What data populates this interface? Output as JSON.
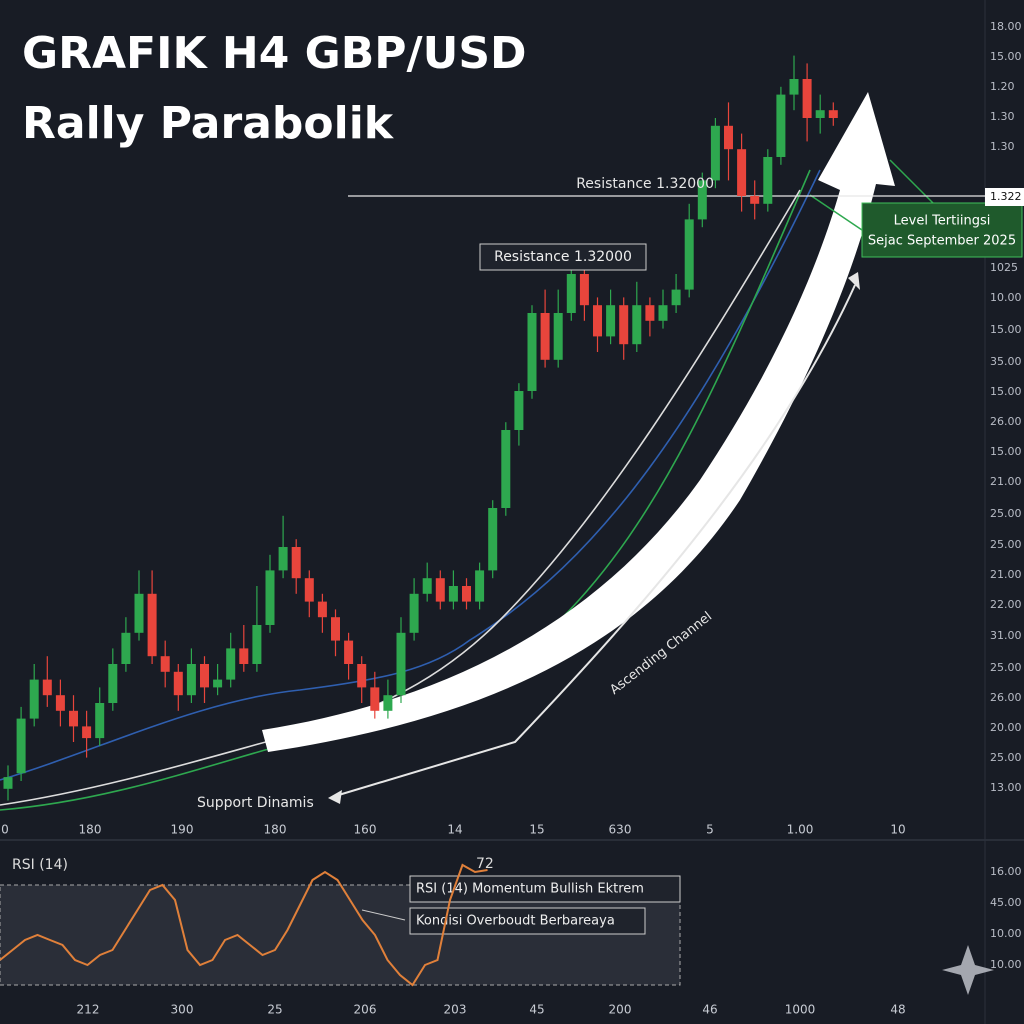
{
  "chart_data": {
    "type": "candlestick",
    "title_line1": "GRAFIK H4 GBP/USD",
    "title_line2": "Rally Parabolik",
    "ylim": [
      1.24,
      1.34
    ],
    "resistance": 1.32,
    "resistance_label": "Resistance 1.32000",
    "resistance_box_label": "Resistance 1.32000",
    "high_box_line1": "Level Tertiingsi",
    "high_box_line2": "Sejac September 2025",
    "channel_label": "Ascending Channel",
    "support_label": "Support Dinamis",
    "up_color": "#2ea84f",
    "down_color": "#e8453c",
    "open": [
      1.244,
      1.246,
      1.253,
      1.258,
      1.256,
      1.254,
      1.252,
      1.2505,
      1.255,
      1.26,
      1.264,
      1.269,
      1.261,
      1.259,
      1.256,
      1.26,
      1.257,
      1.258,
      1.262,
      1.26,
      1.265,
      1.272,
      1.275,
      1.271,
      1.268,
      1.266,
      1.263,
      1.26,
      1.257,
      1.254,
      1.256,
      1.264,
      1.269,
      1.271,
      1.268,
      1.27,
      1.268,
      1.272,
      1.28,
      1.29,
      1.295,
      1.305,
      1.299,
      1.305,
      1.31,
      1.306,
      1.302,
      1.306,
      1.301,
      1.306,
      1.304,
      1.306,
      1.308,
      1.317,
      1.322,
      1.329,
      1.326,
      1.32,
      1.319,
      1.325,
      1.333,
      1.335,
      1.33,
      1.331
    ],
    "close": [
      1.2455,
      1.253,
      1.258,
      1.256,
      1.254,
      1.252,
      1.2505,
      1.255,
      1.26,
      1.264,
      1.269,
      1.261,
      1.259,
      1.256,
      1.26,
      1.257,
      1.258,
      1.262,
      1.26,
      1.265,
      1.272,
      1.275,
      1.271,
      1.268,
      1.266,
      1.263,
      1.26,
      1.257,
      1.254,
      1.256,
      1.264,
      1.269,
      1.271,
      1.268,
      1.27,
      1.268,
      1.272,
      1.28,
      1.29,
      1.295,
      1.305,
      1.299,
      1.305,
      1.31,
      1.306,
      1.302,
      1.306,
      1.301,
      1.306,
      1.304,
      1.306,
      1.308,
      1.317,
      1.322,
      1.329,
      1.326,
      1.32,
      1.319,
      1.325,
      1.333,
      1.335,
      1.33,
      1.331,
      1.33
    ],
    "high": [
      1.247,
      1.2545,
      1.26,
      1.261,
      1.258,
      1.256,
      1.254,
      1.257,
      1.262,
      1.266,
      1.272,
      1.272,
      1.263,
      1.26,
      1.262,
      1.261,
      1.26,
      1.264,
      1.265,
      1.27,
      1.274,
      1.279,
      1.276,
      1.272,
      1.269,
      1.267,
      1.264,
      1.261,
      1.259,
      1.258,
      1.266,
      1.271,
      1.273,
      1.272,
      1.272,
      1.271,
      1.273,
      1.281,
      1.291,
      1.296,
      1.306,
      1.308,
      1.308,
      1.313,
      1.311,
      1.307,
      1.308,
      1.307,
      1.309,
      1.307,
      1.308,
      1.31,
      1.319,
      1.323,
      1.33,
      1.332,
      1.328,
      1.322,
      1.326,
      1.334,
      1.338,
      1.337,
      1.333,
      1.332
    ],
    "low": [
      1.2425,
      1.245,
      1.252,
      1.2545,
      1.252,
      1.25,
      1.248,
      1.2495,
      1.254,
      1.259,
      1.263,
      1.26,
      1.257,
      1.254,
      1.255,
      1.255,
      1.256,
      1.257,
      1.259,
      1.259,
      1.264,
      1.271,
      1.269,
      1.266,
      1.264,
      1.261,
      1.258,
      1.255,
      1.253,
      1.253,
      1.255,
      1.263,
      1.268,
      1.267,
      1.267,
      1.267,
      1.267,
      1.271,
      1.279,
      1.288,
      1.294,
      1.298,
      1.298,
      1.304,
      1.304,
      1.3,
      1.301,
      1.299,
      1.3,
      1.302,
      1.303,
      1.305,
      1.307,
      1.316,
      1.321,
      1.322,
      1.318,
      1.317,
      1.318,
      1.324,
      1.331,
      1.327,
      1.328,
      1.329
    ],
    "price_axis_labels": [
      "18.00",
      "15.00",
      "1.20",
      "1.30",
      "1.30",
      "1.322",
      "1025",
      "10.00",
      "15.00",
      "35.00",
      "15.00",
      "26.00",
      "15.00",
      "21.00",
      "25.00",
      "25.00",
      "21.00",
      "22.00",
      "31.00",
      "25.00",
      "26.00",
      "20.00",
      "25.00",
      "13.00"
    ],
    "x_axis_labels": [
      "0",
      "180",
      "190",
      "180",
      "160",
      "14",
      "15",
      "630",
      "5",
      "1.00",
      "10"
    ],
    "rsi": {
      "label": "RSI (14)",
      "level_label": "72",
      "box_line1": "RSI (14) Momentum Bullish Ektrem",
      "box_line2": "Kondisi Overboudt Berbareaya",
      "color": "#e0803a",
      "ylim": [
        20,
        90
      ],
      "values": [
        32.5,
        37.5,
        42.5,
        45,
        42.5,
        40,
        32.5,
        30,
        35,
        37.5,
        47.5,
        57.5,
        67.5,
        70,
        62.5,
        37.5,
        30,
        32.5,
        42.5,
        45,
        40,
        35,
        37.5,
        47.5,
        60,
        72.5,
        76.5,
        72.5,
        62.5,
        52.5,
        45,
        32.5,
        25,
        20,
        30,
        32.5,
        62.5,
        80,
        76.5,
        77.5
      ],
      "axis_labels": [
        "16.00",
        "45.00",
        "10.00",
        "10.00"
      ],
      "x_axis_labels": [
        "212",
        "300",
        "25",
        "206",
        "203",
        "45",
        "200",
        "46",
        "1000",
        "48"
      ]
    }
  }
}
